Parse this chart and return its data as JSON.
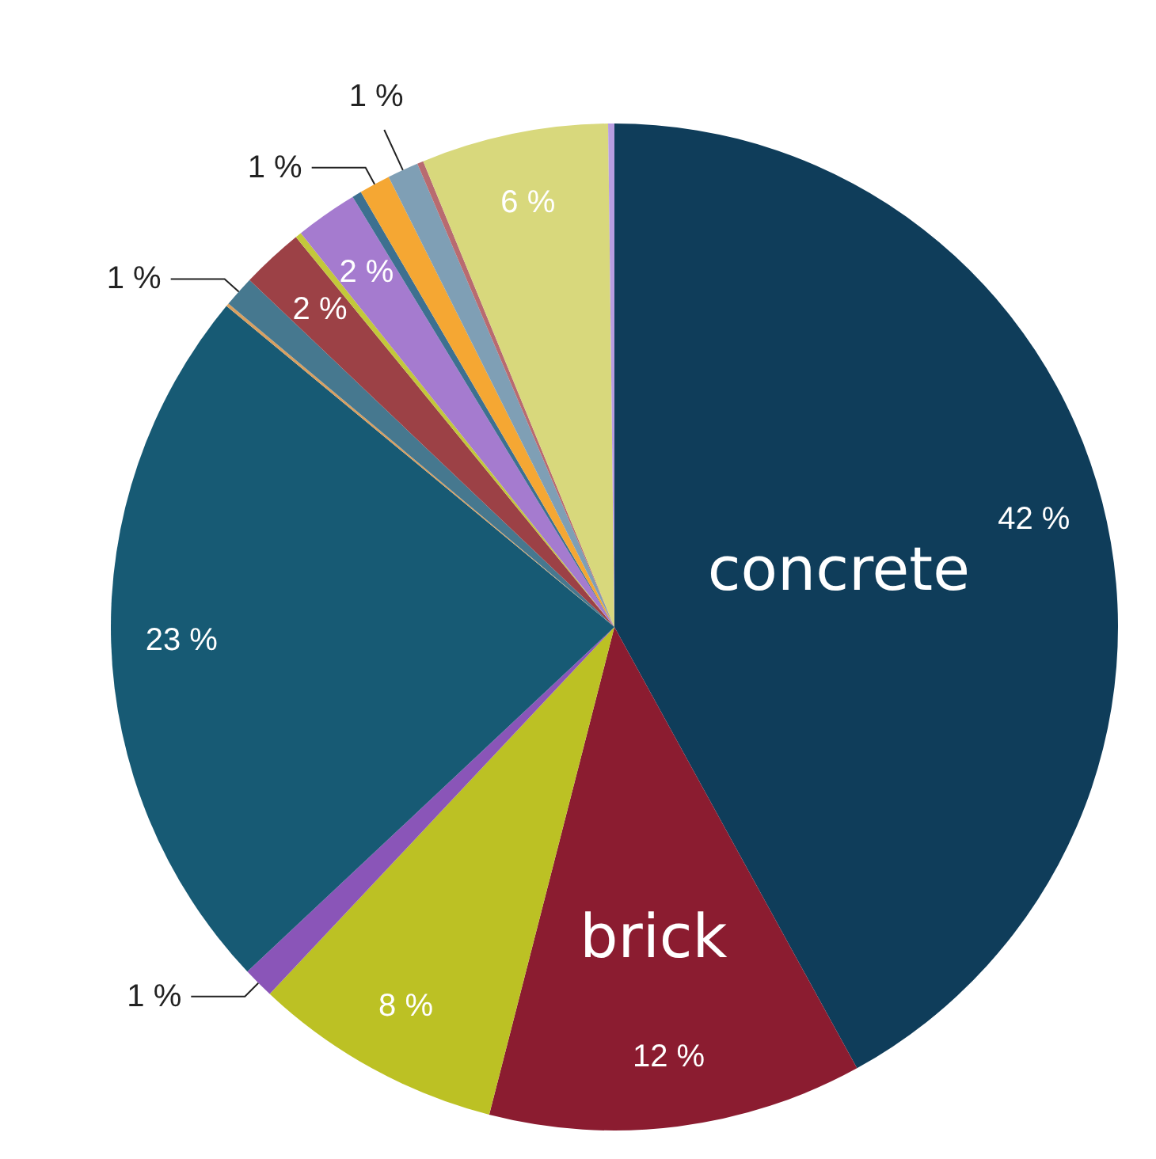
{
  "chart_data": {
    "type": "pie",
    "categories": [
      "concrete",
      "brick",
      null,
      null,
      null,
      null,
      null,
      null,
      null,
      null,
      null,
      null,
      null,
      null,
      null,
      null
    ],
    "values": [
      42,
      12,
      8,
      1,
      23,
      0.1,
      1,
      2,
      0.2,
      2,
      0.3,
      1,
      1,
      0.2,
      6,
      0.2
    ],
    "colors": [
      "#0f3d5a",
      "#8b1c30",
      "#bcc124",
      "#8a55b8",
      "#175a74",
      "#d9a060",
      "#46788f",
      "#9c4146",
      "#c3c83a",
      "#a57bcf",
      "#3d7090",
      "#f5a733",
      "#7f9fb5",
      "#b86b70",
      "#d8d87c",
      "#b89de0"
    ],
    "value_labels": [
      "42 %",
      "12 %",
      "8 %",
      "1 %",
      "23 %",
      null,
      "1 %",
      "2 %",
      null,
      "2 %",
      null,
      "1 %",
      "1 %",
      null,
      "6 %",
      null
    ]
  }
}
